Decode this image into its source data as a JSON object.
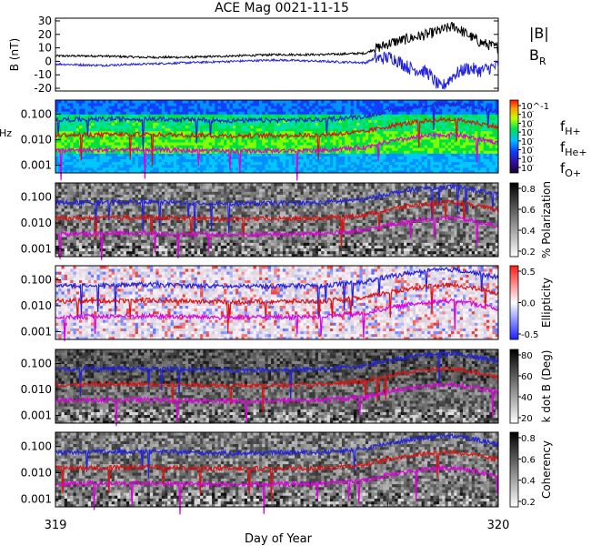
{
  "chart_data": {
    "title": "ACE Mag 0021-11-15",
    "type": "multi-panel spectrogram",
    "x_axis": {
      "label": "Day of Year",
      "range": [
        319,
        320
      ],
      "ticks": [
        "319",
        "320"
      ]
    },
    "panels": [
      {
        "type": "line",
        "ylabel": "B (nT)",
        "ylim": [
          -22,
          32
        ],
        "yticks": [
          "30",
          "20",
          "10",
          "0",
          "-10",
          "-20"
        ],
        "ytick_values": [
          30,
          20,
          10,
          0,
          -10,
          -20
        ],
        "legend": [
          {
            "label": "|B|",
            "color": "#000000"
          },
          {
            "label": "B",
            "sub": "R",
            "color": "#2222dd"
          }
        ],
        "series": [
          {
            "name": "|B|",
            "color": "#000000",
            "x": [
              319.0,
              319.1,
              319.2,
              319.3,
              319.4,
              319.5,
              319.6,
              319.7,
              319.72,
              319.76,
              319.8,
              319.84,
              319.88,
              319.9,
              319.93,
              319.96,
              320.0
            ],
            "y": [
              4,
              4,
              3,
              3,
              4,
              5,
              5,
              6,
              9,
              14,
              17,
              20,
              24,
              26,
              20,
              14,
              10
            ]
          },
          {
            "name": "BR",
            "color": "#2222dd",
            "x": [
              319.0,
              319.1,
              319.2,
              319.3,
              319.4,
              319.5,
              319.6,
              319.7,
              319.72,
              319.76,
              319.8,
              319.84,
              319.87,
              319.9,
              319.93,
              319.96,
              320.0
            ],
            "y": [
              -2,
              -3,
              -2,
              -1,
              0,
              1,
              0,
              -1,
              2,
              3,
              -5,
              -8,
              -20,
              -10,
              -5,
              -7,
              -3
            ]
          }
        ]
      },
      {
        "type": "heatmap",
        "ylabel": "Hz",
        "ylim_log": [
          0.0005,
          0.35
        ],
        "yticks": [
          "0.100",
          "0.010",
          "0.001"
        ],
        "colorbar": {
          "label": "",
          "ticks": [
            "10^-1",
            "10",
            "10",
            "10",
            "10",
            "10",
            "10",
            "10"
          ]
        },
        "legend": [
          {
            "label": "f",
            "sub": "H+",
            "color": "#2222dd"
          },
          {
            "label": "f",
            "sub": "He+",
            "color": "#dd1111"
          },
          {
            "label": "f",
            "sub": "O+",
            "color": "#dd00dd"
          }
        ]
      },
      {
        "type": "heatmap",
        "ylabel": "",
        "yticks": [
          "0.100",
          "0.010",
          "0.001"
        ],
        "colorbar": {
          "label": "% Polarization",
          "ticks": [
            "0.8",
            "0.6",
            "0.4",
            "0.2"
          ]
        }
      },
      {
        "type": "heatmap",
        "ylabel": "",
        "yticks": [
          "0.100",
          "0.010",
          "0.001"
        ],
        "colorbar": {
          "label": "Ellipticity",
          "ticks": [
            "0.5",
            "0.0",
            "-0.5"
          ]
        }
      },
      {
        "type": "heatmap",
        "ylabel": "",
        "yticks": [
          "0.100",
          "0.010",
          "0.001"
        ],
        "colorbar": {
          "label": "k dot B (Deg)",
          "ticks": [
            "80",
            "60",
            "40",
            "20"
          ]
        }
      },
      {
        "type": "heatmap",
        "ylabel": "",
        "yticks": [
          "0.100",
          "0.010",
          "0.001"
        ],
        "colorbar": {
          "label": "Coherency",
          "ticks": [
            "0.8",
            "0.6",
            "0.4",
            "0.2"
          ]
        }
      }
    ],
    "gyrofrequency_curves": [
      {
        "name": "fH+",
        "color": "#2222dd",
        "x": [
          319.0,
          319.2,
          319.4,
          319.6,
          319.7,
          319.75,
          319.8,
          319.85,
          319.9,
          319.95,
          320.0
        ],
        "y": [
          0.06,
          0.065,
          0.055,
          0.06,
          0.08,
          0.13,
          0.18,
          0.23,
          0.25,
          0.18,
          0.12
        ]
      },
      {
        "name": "fHe+",
        "color": "#dd1111",
        "x": [
          319.0,
          319.2,
          319.4,
          319.6,
          319.7,
          319.75,
          319.8,
          319.85,
          319.9,
          319.95,
          320.0
        ],
        "y": [
          0.015,
          0.016,
          0.014,
          0.015,
          0.02,
          0.032,
          0.045,
          0.058,
          0.062,
          0.045,
          0.03
        ]
      },
      {
        "name": "fO+",
        "color": "#dd00dd",
        "x": [
          319.0,
          319.2,
          319.4,
          319.6,
          319.7,
          319.75,
          319.8,
          319.85,
          319.9,
          319.95,
          320.0
        ],
        "y": [
          0.0038,
          0.004,
          0.0035,
          0.0038,
          0.005,
          0.008,
          0.0112,
          0.0145,
          0.0155,
          0.0112,
          0.0075
        ]
      }
    ]
  }
}
